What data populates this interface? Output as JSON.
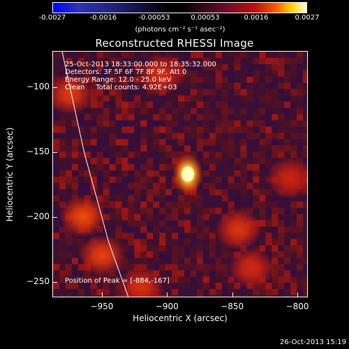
{
  "colorbar": {
    "ticks": [
      "-0.0027",
      "-0.0016",
      "-0.00053",
      "0.00053",
      "0.0016",
      "0.0027"
    ],
    "unit": "(photons cm⁻² s⁻¹ asec⁻²)"
  },
  "info": {
    "line1": "25-Oct-2013 18:33:00.000 to 18:35:32.000",
    "line2": "Detectors: 3F 5F 6F 7F 8F 9F, Att 0",
    "line3": "Energy Range: 12.0 - 25.0 keV",
    "line4": "Clean     Total counts: 4.92E+03",
    "peak": "Position of Peak = [-884,-167]"
  },
  "footer": {
    "timestamp": "26-Oct-2013 15:19"
  },
  "colors": {
    "peak": "#ffffc0",
    "emission": "#c01818",
    "background_low": "#3a1050"
  },
  "chart_data": {
    "type": "heatmap",
    "title": "Reconstructed RHESSI Image",
    "xlabel": "Heliocentric X (arcsec)",
    "ylabel": "Heliocentric Y (arcsec)",
    "xlim": [
      -988,
      -792
    ],
    "ylim": [
      -262,
      -72
    ],
    "x_ticks": [
      -950,
      -900,
      -850,
      -800
    ],
    "x_tick_labels": [
      "−950",
      "−900",
      "−850",
      "−800"
    ],
    "y_ticks": [
      -100,
      -150,
      -200,
      -250
    ],
    "y_tick_labels": [
      "−100",
      "−150",
      "−200",
      "−250"
    ],
    "color_range": [
      -0.0027,
      0.0027
    ],
    "peak": {
      "x": -884,
      "y": -167,
      "value": 0.0027
    },
    "secondary_sources": [
      {
        "x": -965,
        "y": -200,
        "value": 0.0014
      },
      {
        "x": -975,
        "y": -105,
        "value": 0.0012
      },
      {
        "x": -950,
        "y": -230,
        "value": 0.0013
      },
      {
        "x": -905,
        "y": -90,
        "value": 0.001
      },
      {
        "x": -845,
        "y": -210,
        "value": 0.0011
      },
      {
        "x": -835,
        "y": -240,
        "value": 0.0009
      },
      {
        "x": -805,
        "y": -170,
        "value": 0.0008
      },
      {
        "x": -920,
        "y": -255,
        "value": 0.001
      }
    ],
    "limb": [
      [
        -981,
        -72
      ],
      [
        -964,
        -150
      ],
      [
        -945,
        -220
      ],
      [
        -930,
        -262
      ]
    ]
  }
}
